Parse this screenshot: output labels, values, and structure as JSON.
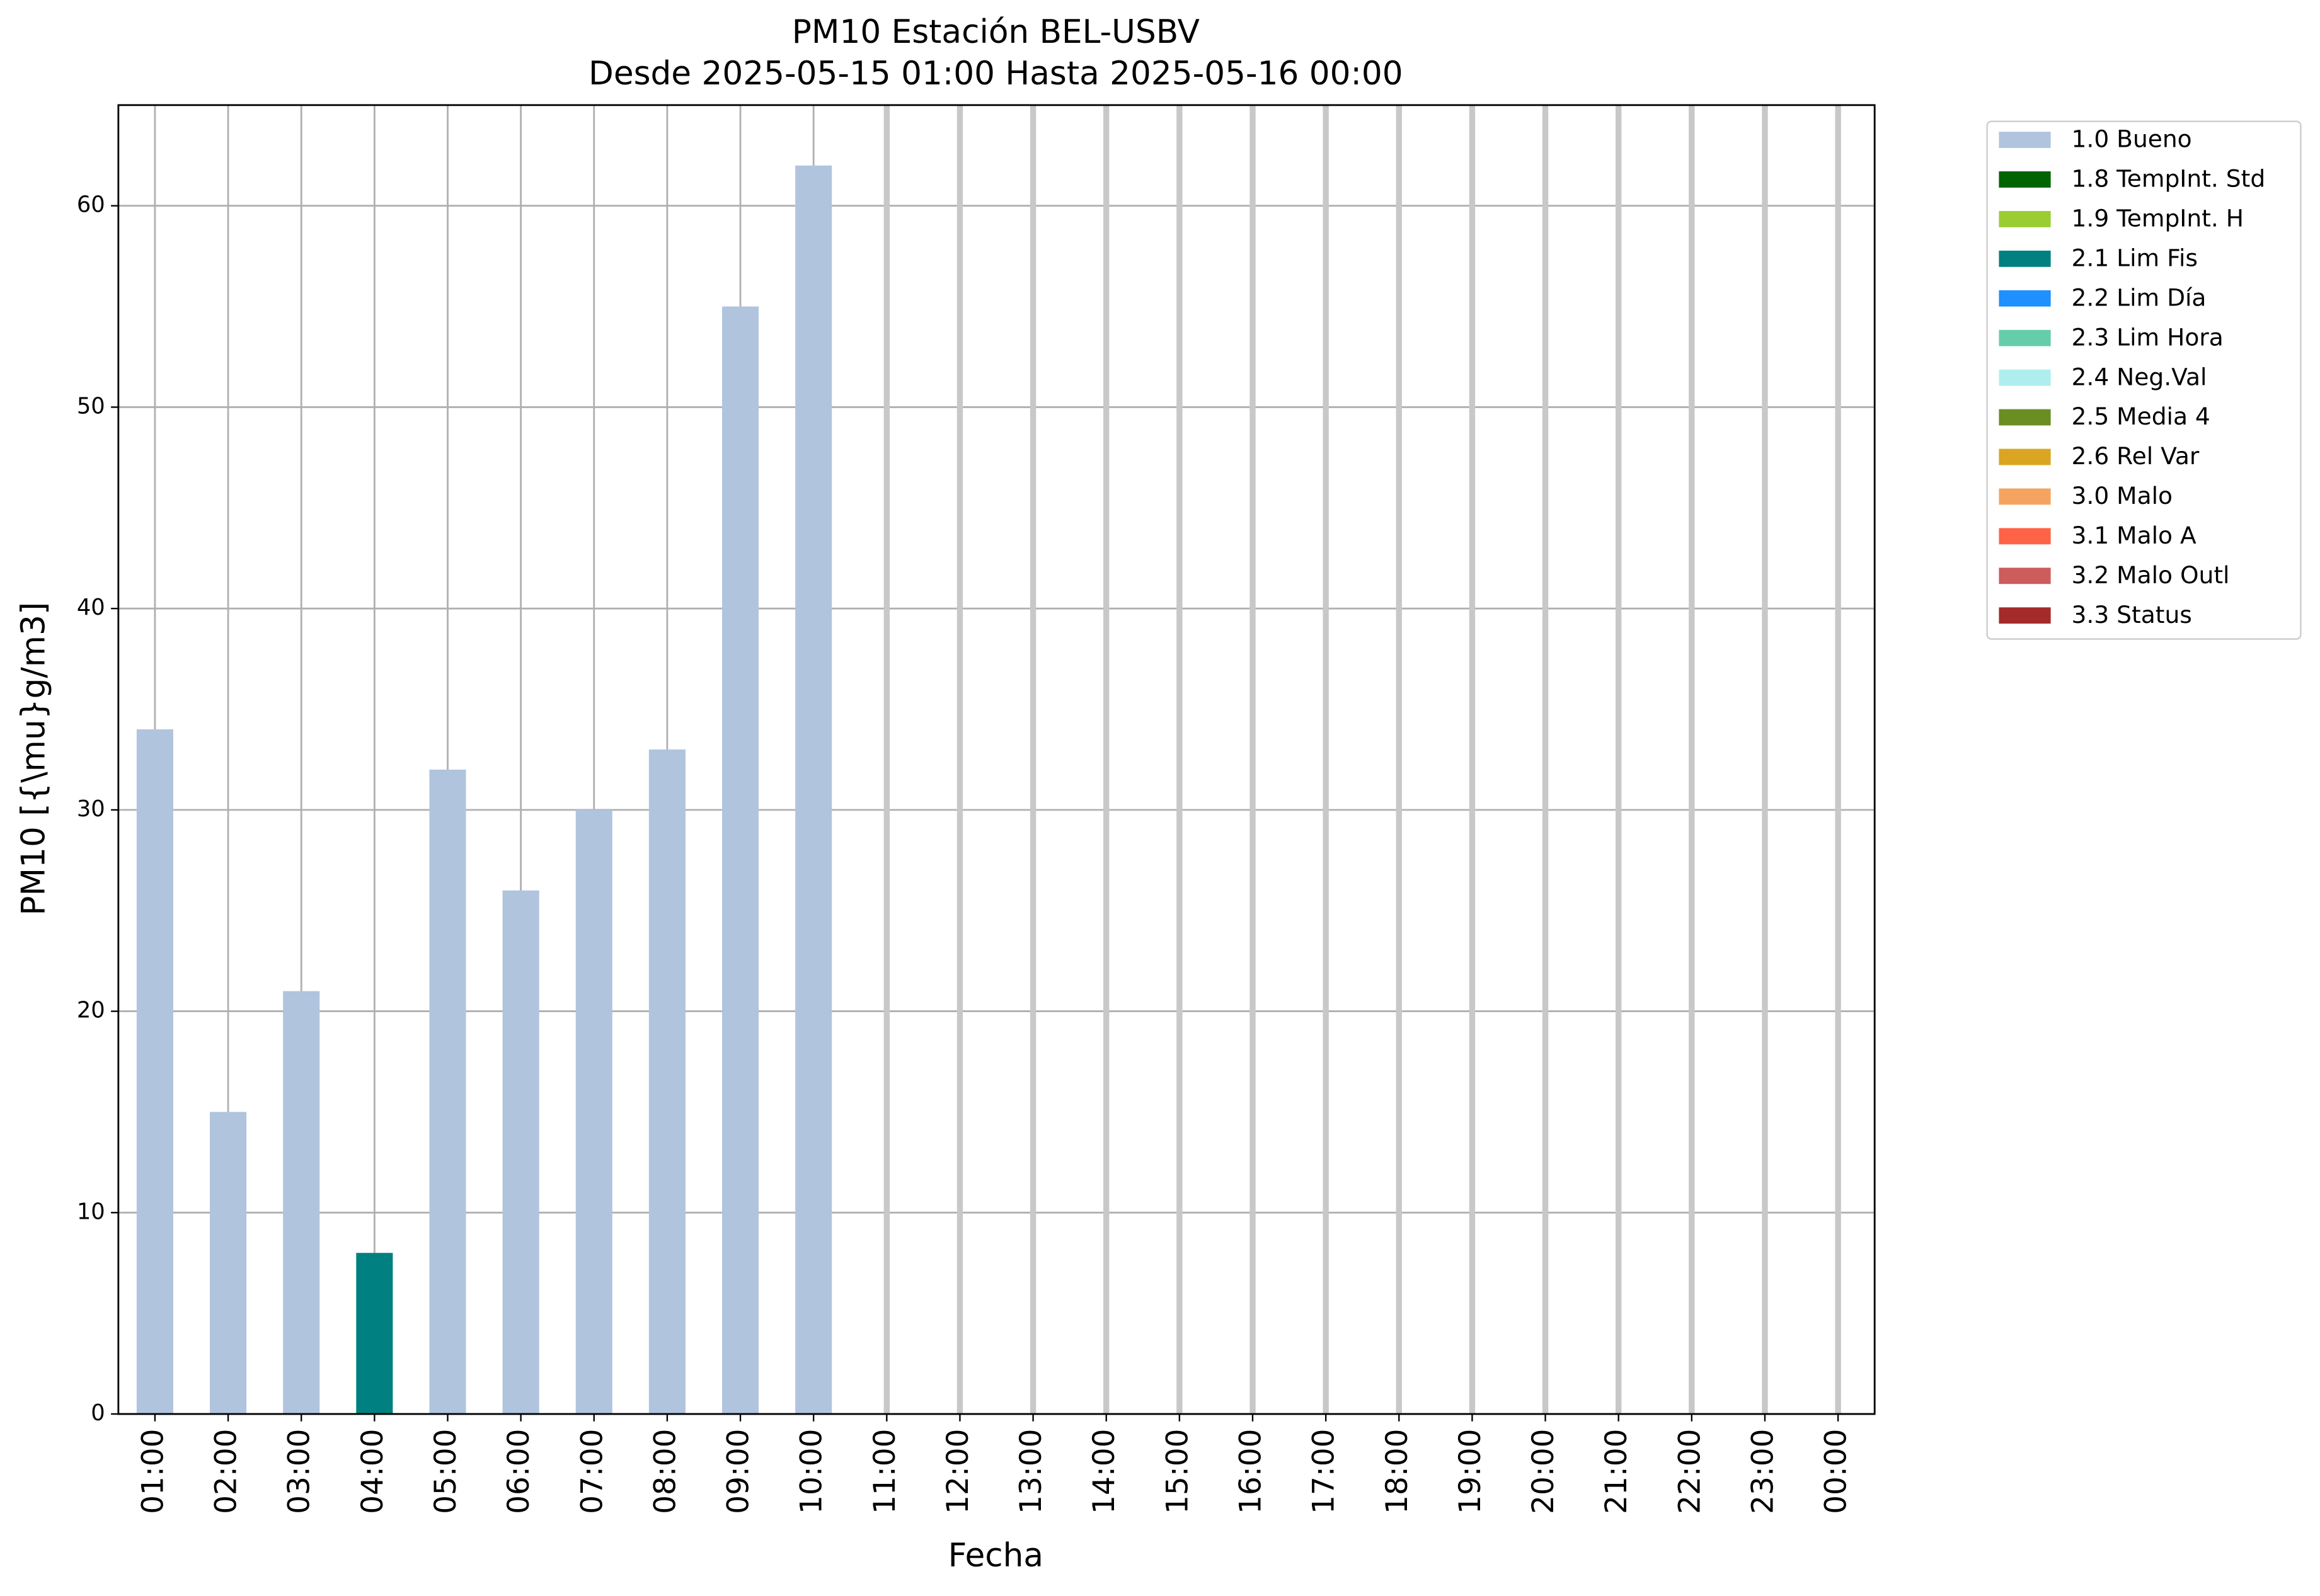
{
  "chart_data": {
    "type": "bar",
    "title": "PM10 Estación BEL-USBV",
    "subtitle": "Desde 2025-05-15 01:00 Hasta 2025-05-16 00:00",
    "x_label": "Fecha",
    "y_label": "PM10 [{\\mu}g/m3]",
    "categories": [
      "01:00",
      "02:00",
      "03:00",
      "04:00",
      "05:00",
      "06:00",
      "07:00",
      "08:00",
      "09:00",
      "10:00",
      "11:00",
      "12:00",
      "13:00",
      "14:00",
      "15:00",
      "16:00",
      "17:00",
      "18:00",
      "19:00",
      "20:00",
      "21:00",
      "22:00",
      "23:00",
      "00:00"
    ],
    "series": [
      {
        "name": "1.0 Bueno",
        "color": "#b0c4de",
        "values": [
          34,
          15,
          21,
          null,
          32,
          26,
          30,
          33,
          55,
          62,
          null,
          null,
          null,
          null,
          null,
          null,
          null,
          null,
          null,
          null,
          null,
          null,
          null,
          null
        ]
      },
      {
        "name": "1.8 TempInt. Std",
        "color": "#006400",
        "values": [
          null,
          null,
          null,
          null,
          null,
          null,
          null,
          null,
          null,
          null,
          null,
          null,
          null,
          null,
          null,
          null,
          null,
          null,
          null,
          null,
          null,
          null,
          null,
          null
        ]
      },
      {
        "name": "1.9 TempInt. H",
        "color": "#9acd32",
        "values": [
          null,
          null,
          null,
          null,
          null,
          null,
          null,
          null,
          null,
          null,
          null,
          null,
          null,
          null,
          null,
          null,
          null,
          null,
          null,
          null,
          null,
          null,
          null,
          null
        ]
      },
      {
        "name": "2.1 Lim Fis",
        "color": "#008080",
        "values": [
          null,
          null,
          null,
          8,
          null,
          null,
          null,
          null,
          null,
          null,
          null,
          null,
          null,
          null,
          null,
          null,
          null,
          null,
          null,
          null,
          null,
          null,
          null,
          null
        ]
      },
      {
        "name": "2.2 Lim Día",
        "color": "#1e90ff",
        "values": [
          null,
          null,
          null,
          null,
          null,
          null,
          null,
          null,
          null,
          null,
          null,
          null,
          null,
          null,
          null,
          null,
          null,
          null,
          null,
          null,
          null,
          null,
          null,
          null
        ]
      },
      {
        "name": "2.3 Lim Hora",
        "color": "#66cdaa",
        "values": [
          null,
          null,
          null,
          null,
          null,
          null,
          null,
          null,
          null,
          null,
          null,
          null,
          null,
          null,
          null,
          null,
          null,
          null,
          null,
          null,
          null,
          null,
          null,
          null
        ]
      },
      {
        "name": "2.4 Neg.Val",
        "color": "#afeeee",
        "values": [
          null,
          null,
          null,
          null,
          null,
          null,
          null,
          null,
          null,
          null,
          null,
          null,
          null,
          null,
          null,
          null,
          null,
          null,
          null,
          null,
          null,
          null,
          null,
          null
        ]
      },
      {
        "name": "2.5 Media 4",
        "color": "#6b8e23",
        "values": [
          null,
          null,
          null,
          null,
          null,
          null,
          null,
          null,
          null,
          null,
          null,
          null,
          null,
          null,
          null,
          null,
          null,
          null,
          null,
          null,
          null,
          null,
          null,
          null
        ]
      },
      {
        "name": "2.6 Rel Var",
        "color": "#daa520",
        "values": [
          null,
          null,
          null,
          null,
          null,
          null,
          null,
          null,
          null,
          null,
          null,
          null,
          null,
          null,
          null,
          null,
          null,
          null,
          null,
          null,
          null,
          null,
          null,
          null
        ]
      },
      {
        "name": "3.0 Malo",
        "color": "#f4a460",
        "values": [
          null,
          null,
          null,
          null,
          null,
          null,
          null,
          null,
          null,
          null,
          null,
          null,
          null,
          null,
          null,
          null,
          null,
          null,
          null,
          null,
          null,
          null,
          null,
          null
        ]
      },
      {
        "name": "3.1 Malo A",
        "color": "#ff6347",
        "values": [
          null,
          null,
          null,
          null,
          null,
          null,
          null,
          null,
          null,
          null,
          null,
          null,
          null,
          null,
          null,
          null,
          null,
          null,
          null,
          null,
          null,
          null,
          null,
          null
        ]
      },
      {
        "name": "3.2 Malo Outl",
        "color": "#cd5c5c",
        "values": [
          null,
          null,
          null,
          null,
          null,
          null,
          null,
          null,
          null,
          null,
          null,
          null,
          null,
          null,
          null,
          null,
          null,
          null,
          null,
          null,
          null,
          null,
          null,
          null
        ]
      },
      {
        "name": "3.3 Status",
        "color": "#a52a2a",
        "values": [
          null,
          null,
          null,
          null,
          null,
          null,
          null,
          null,
          null,
          null,
          null,
          null,
          null,
          null,
          null,
          null,
          null,
          null,
          null,
          null,
          null,
          null,
          null,
          null
        ]
      }
    ],
    "ylim": [
      0,
      65
    ],
    "yticks": [
      0,
      10,
      20,
      30,
      40,
      50,
      60
    ],
    "grid": true,
    "legend": "outside-right"
  }
}
